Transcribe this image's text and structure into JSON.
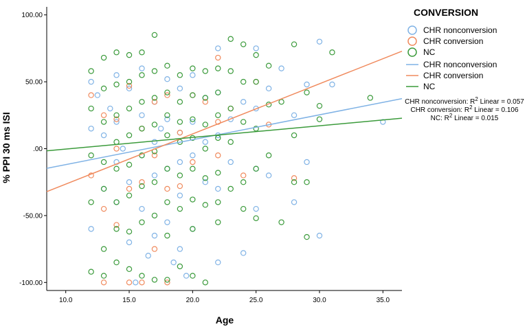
{
  "chart_data": {
    "type": "scatter",
    "title": "",
    "xlabel": "Age",
    "ylabel": "% PPI 30 ms ISI",
    "xlim": [
      8.5,
      36.5
    ],
    "ylim": [
      -106,
      106
    ],
    "x_ticks": [
      10,
      15,
      20,
      25,
      30,
      35
    ],
    "x_tick_labels": [
      "10.0",
      "15.0",
      "20.0",
      "25.0",
      "30.0",
      "35.0"
    ],
    "y_ticks": [
      100,
      50,
      0,
      -50,
      -100
    ],
    "y_tick_labels": [
      "100.00",
      "50.00",
      ".00",
      "-50.00",
      "-100.00"
    ],
    "legend_title": "CONVERSION",
    "legend_placement": "right",
    "series": [
      {
        "name": "CHR nonconversion",
        "line_label": "CHR nonconversion",
        "color": "#7fb2e5",
        "fit": {
          "intercept": -30.5,
          "slope": 1.86
        },
        "r2": 0.057,
        "x": [
          12,
          12,
          12,
          12.5,
          13,
          13,
          13.5,
          14,
          14,
          14,
          14,
          14.5,
          15,
          15,
          15,
          15.5,
          16,
          16,
          16,
          16,
          16.5,
          17,
          17,
          17,
          17,
          17.5,
          18,
          18,
          18,
          18,
          18.5,
          19,
          19,
          19,
          19,
          19,
          19.5,
          20,
          20,
          20,
          20,
          21,
          21,
          21,
          22,
          22,
          22,
          22,
          22,
          23,
          23,
          24,
          24,
          25,
          25,
          25,
          25,
          26,
          26,
          27,
          28,
          28,
          29,
          29,
          30,
          30,
          31,
          35
        ],
        "y": [
          50,
          15,
          -60,
          40,
          10,
          -30,
          30,
          55,
          20,
          -10,
          -40,
          0,
          45,
          -25,
          -70,
          -100,
          60,
          25,
          -5,
          -45,
          -80,
          35,
          5,
          -20,
          -65,
          15,
          52,
          22,
          -15,
          -55,
          -85,
          45,
          12,
          -10,
          -35,
          -75,
          -95,
          55,
          20,
          -5,
          -60,
          38,
          5,
          -25,
          75,
          42,
          10,
          -30,
          -85,
          22,
          -10,
          35,
          -78,
          75,
          30,
          -15,
          -45,
          45,
          -20,
          60,
          -40,
          25,
          48,
          -10,
          80,
          -65,
          48,
          20
        ]
      },
      {
        "name": "CHR conversion",
        "line_label": "CHR conversion",
        "color": "#f08a5d",
        "fit": {
          "intercept": -64,
          "slope": 3.75
        },
        "r2": 0.106,
        "x": [
          12,
          12,
          13,
          13,
          13,
          14,
          14,
          14,
          15,
          15,
          15,
          16,
          16,
          16,
          17,
          17,
          17,
          18,
          18,
          18,
          19,
          19,
          20,
          20,
          21,
          22,
          22,
          22,
          23,
          24,
          25,
          26,
          28
        ],
        "y": [
          40,
          -20,
          25,
          -45,
          -100,
          0,
          -57,
          22,
          47,
          -30,
          -100,
          15,
          -25,
          -100,
          35,
          -5,
          -75,
          40,
          -30,
          -100,
          -28,
          12,
          40,
          -10,
          35,
          68,
          20,
          -5,
          30,
          -20,
          50,
          18,
          -22
        ]
      },
      {
        "name": "NC",
        "line_label": "NC",
        "color": "#3a9a3a",
        "fit": {
          "intercept": -9,
          "slope": 0.87
        },
        "r2": 0.015,
        "x": [
          12,
          12,
          12,
          12,
          12,
          13,
          13,
          13,
          13,
          13,
          13,
          13,
          14,
          14,
          14,
          14,
          14,
          14,
          14,
          14,
          15,
          15,
          15,
          15,
          15,
          15,
          15,
          15,
          16,
          16,
          16,
          16,
          16,
          16,
          16,
          16,
          17,
          17,
          17,
          17,
          17,
          17,
          17,
          17,
          18,
          18,
          18,
          18,
          18,
          18,
          18,
          18,
          19,
          19,
          19,
          19,
          19,
          19,
          19,
          20,
          20,
          20,
          20,
          20,
          20,
          20,
          20,
          21,
          21,
          21,
          21,
          21,
          21,
          21,
          22,
          22,
          22,
          22,
          22,
          22,
          22,
          23,
          23,
          23,
          23,
          23,
          24,
          24,
          24,
          24,
          24,
          25,
          25,
          25,
          25,
          25,
          26,
          26,
          26,
          27,
          27,
          28,
          28,
          28,
          29,
          29,
          29,
          30,
          30,
          31,
          34
        ],
        "y": [
          58,
          30,
          -5,
          -40,
          -92,
          68,
          45,
          20,
          -10,
          -30,
          -75,
          -95,
          72,
          48,
          25,
          5,
          -15,
          -40,
          -60,
          -85,
          70,
          50,
          30,
          10,
          -12,
          -35,
          -62,
          -90,
          72,
          55,
          35,
          15,
          -5,
          -28,
          -55,
          -95,
          85,
          58,
          38,
          18,
          -2,
          -25,
          -50,
          -98,
          62,
          42,
          25,
          10,
          -15,
          -40,
          -65,
          -98,
          55,
          35,
          20,
          5,
          -20,
          -45,
          -88,
          60,
          40,
          22,
          8,
          -15,
          -38,
          -60,
          -95,
          58,
          38,
          18,
          0,
          -22,
          -42,
          -100,
          60,
          42,
          25,
          8,
          -18,
          -40,
          -55,
          82,
          58,
          30,
          5,
          -30,
          78,
          50,
          20,
          -25,
          -45,
          70,
          50,
          15,
          -15,
          -52,
          62,
          33,
          -5,
          35,
          -55,
          78,
          10,
          -25,
          42,
          -25,
          -66,
          32,
          22,
          72,
          38
        ]
      }
    ],
    "annotations": [
      {
        "prefix": "CHR nonconversion: R",
        "sup": "2",
        "suffix": " Linear = 0.057"
      },
      {
        "prefix": "CHR conversion: R",
        "sup": "2",
        "suffix": " Linear = 0.106"
      },
      {
        "prefix": "NC: R",
        "sup": "2",
        "suffix": " Linear = 0.015"
      }
    ]
  }
}
